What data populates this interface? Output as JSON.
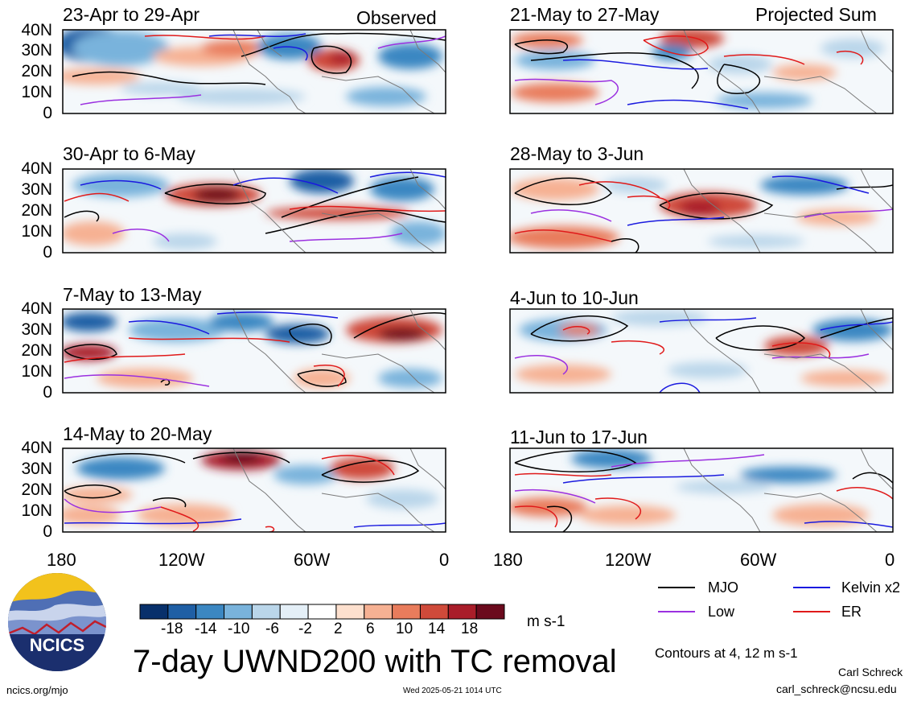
{
  "panels": [
    {
      "title": "23-Apr to 29-Apr",
      "corner": "Observed"
    },
    {
      "title": "21-May to 27-May",
      "corner": "Projected Sum"
    },
    {
      "title": "30-Apr to 6-May",
      "corner": ""
    },
    {
      "title": "28-May to 3-Jun",
      "corner": ""
    },
    {
      "title": "7-May to 13-May",
      "corner": ""
    },
    {
      "title": "4-Jun to 10-Jun",
      "corner": ""
    },
    {
      "title": "14-May to 20-May",
      "corner": ""
    },
    {
      "title": "11-Jun to 17-Jun",
      "corner": ""
    }
  ],
  "lat_labels": [
    "40N",
    "30N",
    "20N",
    "10N",
    "0"
  ],
  "lon_labels": [
    "180",
    "120W",
    "60W",
    "0"
  ],
  "colorbar": {
    "labels": [
      "-18",
      "-14",
      "-10",
      "-6",
      "-2",
      "2",
      "6",
      "10",
      "14",
      "18"
    ],
    "colors": [
      "#08306b",
      "#1f5fa5",
      "#3b87c2",
      "#79b3dc",
      "#bad6ea",
      "#e4eff7",
      "#ffffff",
      "#fde0ce",
      "#f6b193",
      "#e97c5c",
      "#cf4a3a",
      "#a91d29",
      "#6b0a1d"
    ],
    "units": "m s-1"
  },
  "legend": {
    "items": [
      {
        "label": "MJO",
        "color": "#000000"
      },
      {
        "label": "Kelvin x2",
        "color": "#1a1adf"
      },
      {
        "label": "Low",
        "color": "#9b30e0"
      },
      {
        "label": "ER",
        "color": "#e01a1a"
      }
    ],
    "contours_note": "Contours at 4, 12 m s-1"
  },
  "main_title": "7-day UWND200 with TC removal",
  "logo_text": "NCICS",
  "footer": {
    "url": "ncics.org/mjo",
    "timestamp": "Wed 2025-05-21 1014 UTC",
    "author": "Carl Schreck",
    "email": "carl_schreck@ncsu.edu"
  }
}
